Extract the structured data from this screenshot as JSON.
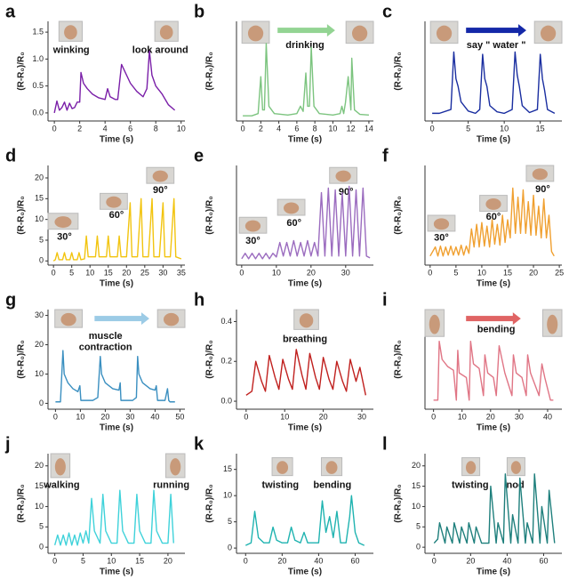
{
  "chart_data": [
    {
      "type": "line",
      "label": "a",
      "xlabel": "Time (s)",
      "ylabel": "(R-R₀)/R₀",
      "annotations": [
        "winking",
        "look around"
      ],
      "color": "#7a1fa8",
      "x": [
        0,
        0.2,
        0.4,
        0.6,
        0.8,
        1,
        1.2,
        1.4,
        1.6,
        1.8,
        2,
        2.1,
        2.3,
        2.6,
        3,
        3.5,
        4,
        4.2,
        4.4,
        4.8,
        5,
        5.3,
        6,
        6.5,
        7,
        7.3,
        7.5,
        7.7,
        8,
        8.5,
        9,
        9.5
      ],
      "values": [
        0,
        0.22,
        0.05,
        0.1,
        0.2,
        0.05,
        0.18,
        0.08,
        0.1,
        0.2,
        0.2,
        0.75,
        0.55,
        0.45,
        0.35,
        0.28,
        0.25,
        0.45,
        0.3,
        0.25,
        0.25,
        0.9,
        0.55,
        0.4,
        0.3,
        0.45,
        1.15,
        0.7,
        0.5,
        0.35,
        0.15,
        0.05
      ],
      "xlim": [
        -0.5,
        10.3
      ],
      "xticks": [
        0,
        2,
        4,
        6,
        8,
        10
      ],
      "ylim": [
        -0.15,
        1.7
      ],
      "yticks": [
        {
          "value": 0,
          "label": "0.0"
        },
        {
          "value": 0.5,
          "label": "0.5"
        },
        {
          "value": 1,
          "label": "1.0"
        },
        {
          "value": 1.5,
          "label": "1.5"
        }
      ]
    },
    {
      "type": "line",
      "label": "b",
      "xlabel": "Time (s)",
      "ylabel": "(R-R₀)/R₀",
      "annotations": [
        "drinking"
      ],
      "color": "#7cc47f",
      "x": [
        0,
        1,
        1.7,
        2,
        2.2,
        2.4,
        2.6,
        2.9,
        3.5,
        5,
        6,
        6.4,
        6.7,
        7,
        7.2,
        7.4,
        7.6,
        7.9,
        8.5,
        10,
        10.8,
        11,
        11.2,
        11.4,
        11.7,
        12,
        12.1,
        12.4,
        13,
        14
      ],
      "values": [
        0.02,
        0.02,
        0.05,
        0.55,
        0.1,
        0.1,
        1.0,
        0.15,
        0.05,
        0.03,
        0.05,
        0.15,
        0.08,
        0.6,
        0.15,
        0.15,
        0.95,
        0.15,
        0.05,
        0.03,
        0.05,
        0.15,
        0.05,
        0.2,
        0.55,
        0.1,
        0.8,
        0.1,
        0.04,
        0.03
      ],
      "xlim": [
        -0.7,
        14.5
      ],
      "xticks": [
        0,
        2,
        4,
        6,
        8,
        10,
        12,
        14
      ],
      "ylim": [
        -0.05,
        1.3
      ]
    },
    {
      "type": "line",
      "label": "c",
      "xlabel": "Time (s)",
      "ylabel": "(R-R₀)/R₀",
      "annotations": [
        "say \" water \""
      ],
      "color": "#1a2ea0",
      "x": [
        0,
        1,
        2.6,
        3,
        3.3,
        3.6,
        4,
        5,
        6,
        6.6,
        7,
        7.3,
        7.6,
        8,
        9,
        10,
        11.1,
        11.5,
        11.8,
        12.1,
        12.5,
        13.5,
        14.6,
        15,
        15.3,
        15.6,
        16,
        17
      ],
      "values": [
        0.05,
        0.05,
        0.1,
        0.85,
        0.5,
        0.4,
        0.2,
        0.08,
        0.05,
        0.1,
        0.82,
        0.5,
        0.4,
        0.15,
        0.07,
        0.05,
        0.1,
        0.85,
        0.55,
        0.4,
        0.15,
        0.06,
        0.1,
        0.82,
        0.5,
        0.35,
        0.1,
        0.05
      ],
      "xlim": [
        -1,
        18
      ],
      "xticks": [
        0,
        5,
        10,
        15
      ],
      "ylim": [
        -0.05,
        1.25
      ]
    },
    {
      "type": "line",
      "label": "d",
      "xlabel": "Time (s)",
      "ylabel": "(R-R₀)/R₀",
      "annotations": [
        "30°",
        "60°",
        "90°"
      ],
      "color": "#f2c40f",
      "x": [
        0,
        0.5,
        1,
        1.5,
        2.5,
        3,
        3.5,
        4.5,
        5,
        5.5,
        6.5,
        7,
        7.5,
        8.5,
        9,
        9.5,
        11.5,
        12,
        12.5,
        14.5,
        15,
        15.5,
        17.5,
        18,
        18.5,
        20,
        21,
        21.5,
        23,
        24,
        24.5,
        26,
        27,
        27.5,
        29,
        30,
        30.5,
        32,
        33,
        33.5,
        35
      ],
      "values": [
        0,
        0.3,
        2,
        0.3,
        0.3,
        2,
        0.3,
        0.3,
        2,
        0.3,
        0.3,
        2,
        0.3,
        0.5,
        6,
        1,
        1,
        6,
        1,
        1,
        6,
        1,
        1,
        6,
        1,
        1,
        14,
        1,
        1,
        15,
        1,
        1,
        15,
        1,
        1,
        14,
        1,
        1,
        15,
        1,
        0.5
      ],
      "xlim": [
        -1.5,
        36
      ],
      "xticks": [
        0,
        5,
        10,
        15,
        20,
        25,
        30,
        35
      ],
      "ylim": [
        -1,
        23
      ],
      "yticks": [
        0,
        5,
        10,
        15,
        20
      ]
    },
    {
      "type": "line",
      "label": "e",
      "xlabel": "Time (s)",
      "ylabel": "(R-R₀)/R₀",
      "annotations": [
        "30°",
        "60°",
        "90°"
      ],
      "color": "#9b6cbf",
      "x": [
        0,
        1,
        2,
        3,
        4,
        5,
        6,
        7,
        8,
        9,
        10,
        11,
        12,
        13,
        14,
        15,
        16,
        17,
        18,
        19,
        20,
        21,
        22,
        23,
        24,
        25,
        26,
        27,
        28,
        29,
        30,
        31,
        32,
        33,
        34,
        35,
        36,
        37
      ],
      "values": [
        0.02,
        0.08,
        0.02,
        0.08,
        0.02,
        0.08,
        0.02,
        0.08,
        0.02,
        0.08,
        0.04,
        0.2,
        0.05,
        0.2,
        0.05,
        0.22,
        0.05,
        0.2,
        0.05,
        0.22,
        0.05,
        0.2,
        0.05,
        0.75,
        0.05,
        0.8,
        0.05,
        0.78,
        0.05,
        0.75,
        0.05,
        0.82,
        0.05,
        0.78,
        0.05,
        0.8,
        0.05,
        0.03
      ],
      "xlim": [
        -1.5,
        38
      ],
      "xticks": [
        0,
        10,
        20,
        30
      ],
      "ylim": [
        -0.05,
        1.05
      ]
    },
    {
      "type": "line",
      "label": "f",
      "xlabel": "Time (s)",
      "ylabel": "(R-R₀)/R₀",
      "annotations": [
        "30°",
        "60°",
        "90°"
      ],
      "color": "#f0a030",
      "x": [
        0,
        1,
        1.5,
        2,
        2.5,
        3,
        3.5,
        4,
        4.5,
        5,
        5.5,
        6,
        6.5,
        7,
        7.5,
        8,
        8.5,
        9,
        9.5,
        10,
        10.5,
        11,
        11.5,
        12,
        12.5,
        13,
        13.5,
        14,
        14.5,
        15,
        15.5,
        16,
        16.5,
        17,
        17.5,
        18,
        18.5,
        19,
        19.5,
        20,
        20.5,
        21,
        21.5,
        22,
        22.5,
        23,
        23.5,
        24
      ],
      "values": [
        0.05,
        0.15,
        0.05,
        0.16,
        0.05,
        0.15,
        0.06,
        0.16,
        0.06,
        0.15,
        0.06,
        0.17,
        0.06,
        0.16,
        0.08,
        0.35,
        0.15,
        0.4,
        0.15,
        0.42,
        0.16,
        0.38,
        0.15,
        0.45,
        0.18,
        0.4,
        0.17,
        0.5,
        0.2,
        0.45,
        0.25,
        0.8,
        0.3,
        0.7,
        0.3,
        0.78,
        0.3,
        0.65,
        0.28,
        0.72,
        0.28,
        0.6,
        0.25,
        0.68,
        0.25,
        0.5,
        0.1,
        0.05
      ],
      "xlim": [
        -1,
        25.5
      ],
      "xticks": [
        0,
        5,
        10,
        15,
        20,
        25
      ],
      "ylim": [
        -0.05,
        1.05
      ]
    },
    {
      "type": "line",
      "label": "g",
      "xlabel": "Time (s)",
      "ylabel": "(R-R₀)/R₀",
      "annotations": [
        "muscle",
        "contraction"
      ],
      "color": "#3a8fc0",
      "x": [
        0,
        2,
        3,
        3.5,
        5,
        7,
        9,
        9.8,
        10.2,
        11,
        15,
        17,
        18,
        18.5,
        20,
        23,
        25.5,
        26,
        26.3,
        28,
        31,
        32.5,
        33,
        33.5,
        35,
        38,
        40,
        40.5,
        41,
        44,
        45,
        45.5,
        46,
        48
      ],
      "values": [
        0.5,
        0.5,
        18,
        10,
        7,
        5,
        4,
        6,
        1,
        1,
        1,
        2,
        16,
        10,
        7,
        5,
        4.5,
        7,
        1,
        1,
        1,
        2,
        16,
        10,
        7,
        5,
        4.5,
        6,
        1,
        1,
        5,
        1,
        0.5,
        0.5
      ],
      "xlim": [
        -3,
        52
      ],
      "xticks": [
        0,
        10,
        20,
        30,
        40,
        50
      ],
      "ylim": [
        -2,
        32
      ],
      "yticks": [
        0,
        10,
        20,
        30
      ]
    },
    {
      "type": "line",
      "label": "h",
      "xlabel": "Time (s)",
      "ylabel": "(R-R₀)/R₀",
      "annotations": [
        "breathing"
      ],
      "color": "#c0201e",
      "x": [
        0,
        1.5,
        2.5,
        4,
        5,
        6,
        7.5,
        8.5,
        9.5,
        11,
        12,
        13,
        14.5,
        15.5,
        16.5,
        18,
        19,
        20,
        21.5,
        22.5,
        23.5,
        25,
        26,
        27,
        28.5,
        29.5,
        31
      ],
      "values": [
        0.03,
        0.05,
        0.2,
        0.1,
        0.05,
        0.23,
        0.12,
        0.06,
        0.21,
        0.11,
        0.06,
        0.26,
        0.13,
        0.06,
        0.24,
        0.12,
        0.06,
        0.22,
        0.11,
        0.06,
        0.2,
        0.1,
        0.05,
        0.21,
        0.1,
        0.17,
        0.03
      ],
      "xlim": [
        -2.5,
        33
      ],
      "xticks": [
        0,
        10,
        20,
        30
      ],
      "ylim": [
        -0.04,
        0.46
      ],
      "yticks": [
        {
          "value": 0,
          "label": "0.0"
        },
        {
          "value": 0.2,
          "label": "0.2"
        },
        {
          "value": 0.4,
          "label": "0.4"
        }
      ]
    },
    {
      "type": "line",
      "label": "i",
      "xlabel": "Time (s)",
      "ylabel": "(R-R₀)/R₀",
      "annotations": [
        "bending"
      ],
      "color": "#e07585",
      "x": [
        0,
        1.5,
        2,
        3,
        5,
        7,
        8,
        8.5,
        9,
        11.5,
        12.5,
        13,
        14,
        16,
        17.5,
        18,
        19,
        21,
        22,
        23,
        25,
        27.5,
        28,
        29,
        31,
        32.5,
        33,
        34,
        37,
        38,
        39,
        41,
        42
      ],
      "values": [
        0.05,
        0.05,
        0.7,
        0.5,
        0.42,
        0.38,
        0.05,
        0.6,
        0.35,
        0.3,
        0.05,
        0.7,
        0.45,
        0.4,
        0.1,
        0.55,
        0.35,
        0.3,
        0.1,
        0.65,
        0.35,
        0.1,
        0.55,
        0.35,
        0.3,
        0.1,
        0.55,
        0.35,
        0.1,
        0.45,
        0.3,
        0.05,
        0.05
      ],
      "xlim": [
        -3,
        45
      ],
      "xticks": [
        0,
        10,
        20,
        30,
        40
      ],
      "ylim": [
        -0.05,
        1.05
      ]
    },
    {
      "type": "line",
      "label": "j",
      "xlabel": "Time (s)",
      "ylabel": "(R-R₀)/R₀",
      "annotations": [
        "walking",
        "running"
      ],
      "color": "#3fd2da",
      "x": [
        0,
        0.5,
        1,
        1.5,
        2,
        2.5,
        3,
        3.5,
        4,
        4.5,
        5,
        5.5,
        6,
        6.5,
        7,
        8,
        8.5,
        9,
        10,
        11,
        11.5,
        12,
        13,
        14,
        14.5,
        15,
        16,
        17,
        17.5,
        18,
        19,
        20,
        20.5,
        21
      ],
      "values": [
        0.5,
        3,
        0.5,
        3,
        0.5,
        3.5,
        0.5,
        3,
        0.5,
        3.5,
        1,
        4,
        1,
        12,
        4,
        1,
        13,
        4,
        1,
        1,
        14,
        4,
        1,
        1,
        13,
        4,
        1,
        1,
        14,
        4,
        1,
        1,
        13,
        1
      ],
      "xlim": [
        -1.2,
        23
      ],
      "xticks": [
        0,
        5,
        10,
        15,
        20
      ],
      "ylim": [
        -1.5,
        23
      ],
      "yticks": [
        0,
        5,
        10,
        15,
        20
      ]
    },
    {
      "type": "line",
      "label": "k",
      "xlabel": "Time (s)",
      "ylabel": "(R-R₀)/R₀",
      "annotations": [
        "twisting",
        "bending"
      ],
      "color": "#1fb3b0",
      "x": [
        0,
        3,
        5,
        7,
        10,
        13,
        15,
        17,
        20,
        23,
        25,
        27,
        30,
        32,
        34,
        36,
        40,
        42,
        44,
        46,
        48,
        50,
        52,
        55,
        57,
        58,
        60,
        62,
        65
      ],
      "values": [
        0.5,
        1,
        7,
        2,
        1,
        1,
        4,
        1.5,
        1,
        1,
        4,
        1.5,
        1,
        3,
        1,
        1,
        1,
        9,
        3,
        6,
        2,
        7,
        1,
        1,
        6,
        10,
        3,
        1,
        0.5
      ],
      "xlim": [
        -5,
        70
      ],
      "xticks": [
        0,
        20,
        40,
        60
      ],
      "ylim": [
        -1,
        18
      ],
      "yticks": [
        0,
        5,
        10,
        15
      ]
    },
    {
      "type": "line",
      "label": "l",
      "xlabel": "Time (s)",
      "ylabel": "(R-R₀)/R₀",
      "annotations": [
        "twisting",
        "nod"
      ],
      "color": "#1e7f7c",
      "x": [
        0,
        2,
        3,
        6,
        7,
        10,
        11,
        14,
        15,
        18,
        19,
        22,
        23,
        26,
        30,
        31,
        34,
        35,
        38,
        39,
        42,
        43,
        46,
        47,
        50,
        51,
        54,
        55,
        58,
        59,
        62,
        63,
        66
      ],
      "values": [
        1,
        2,
        6,
        1,
        5,
        1,
        6,
        1,
        5,
        1,
        6,
        1,
        5,
        1,
        1,
        15,
        1,
        6,
        1,
        18,
        1,
        8,
        1,
        17,
        1,
        6,
        1,
        18,
        1,
        10,
        1,
        14,
        1
      ],
      "xlim": [
        -5,
        70
      ],
      "xticks": [
        0,
        20,
        40,
        60
      ],
      "ylim": [
        -1.5,
        23
      ],
      "yticks": [
        0,
        5,
        10,
        15,
        20
      ]
    }
  ]
}
